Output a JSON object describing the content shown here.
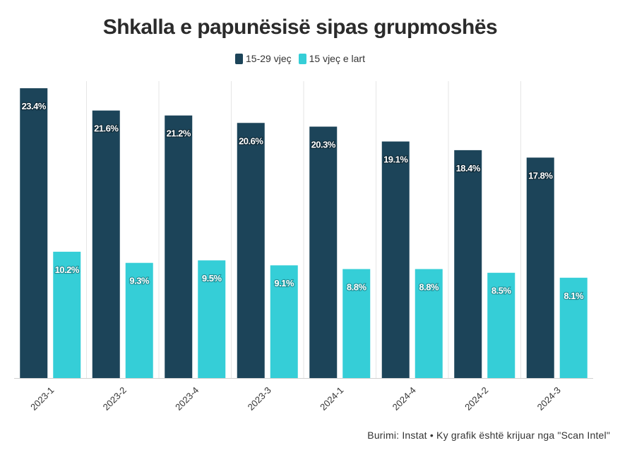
{
  "colors": {
    "series1": "#1c4459",
    "series2": "#35ced7",
    "grid": "#e6e6e6",
    "axis": "#d0d0d0"
  },
  "chart_data": {
    "type": "bar",
    "title": "Shkalla e papunësisë sipas grupmoshës",
    "categories": [
      "2023-1",
      "2023-2",
      "2023-4",
      "2023-3",
      "2024-1",
      "2024-4",
      "2024-2",
      "2024-3"
    ],
    "series": [
      {
        "name": "15-29 vjeç",
        "values": [
          23.4,
          21.6,
          21.2,
          20.6,
          20.3,
          19.1,
          18.4,
          17.8
        ],
        "labels": [
          "23.4%",
          "21.6%",
          "21.2%",
          "20.6%",
          "20.3%",
          "19.1%",
          "18.4%",
          "17.8%"
        ]
      },
      {
        "name": "15 vjeç e lart",
        "values": [
          10.2,
          9.3,
          9.5,
          9.1,
          8.8,
          8.8,
          8.5,
          8.1
        ],
        "labels": [
          "10.2%",
          "9.3%",
          "9.5%",
          "9.1%",
          "8.8%",
          "8.8%",
          "8.5%",
          "8.1%"
        ]
      }
    ],
    "ylim": [
      0,
      24
    ],
    "grid": true,
    "legend": "top-center"
  },
  "source_text": "Burimi: Instat • Ky grafik është krijuar nga \"Scan Intel\""
}
